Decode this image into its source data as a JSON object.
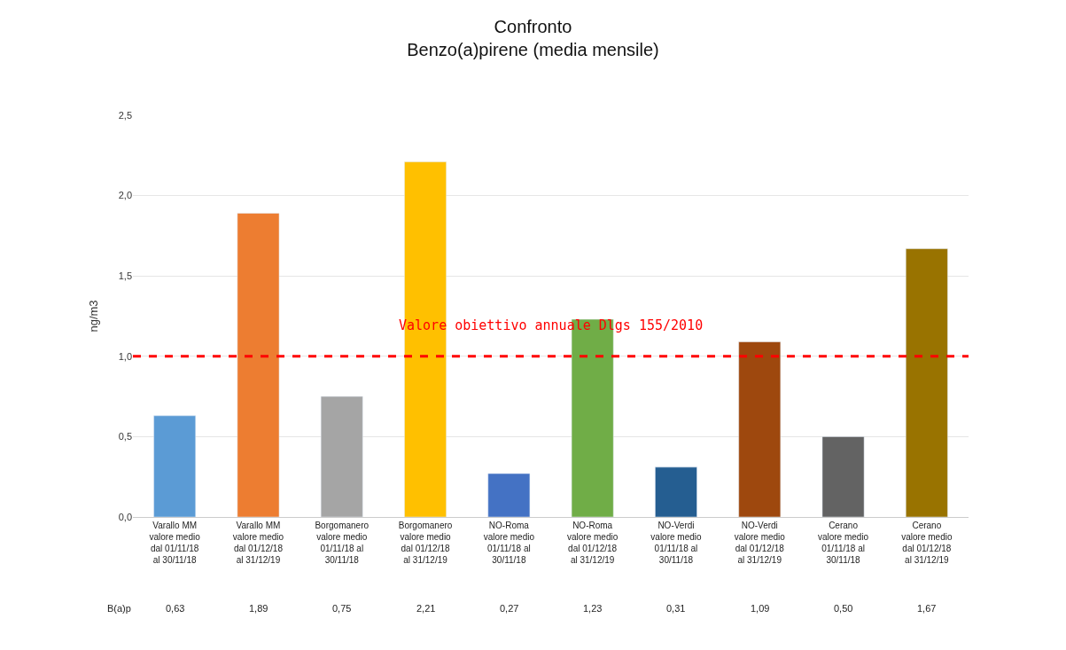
{
  "chart_data": {
    "type": "bar",
    "title": "Confronto\nBenzo(a)pirene (media mensile)",
    "ylabel": "ng/m3",
    "categories": [
      "Varallo MM\nvalore medio\ndal 01/11/18\nal 30/11/18",
      "Varallo MM\nvalore medio\ndal 01/12/18\nal 31/12/19",
      "Borgomanero\nvalore medio\n01/11/18 al\n30/11/18",
      "Borgomanero\nvalore medio\ndal 01/12/18\nal 31/12/19",
      "NO-Roma\nvalore medio\n01/11/18 al\n30/11/18",
      "NO-Roma\nvalore medio\ndal 01/12/18\nal 31/12/19",
      "NO-Verdi\nvalore medio\n01/11/18 al\n30/11/18",
      "NO-Verdi\nvalore medio\ndal 01/12/18\nal 31/12/19",
      "Cerano\nvalore medio\n01/11/18 al\n30/11/18",
      "Cerano\nvalore medio\ndal 01/12/18\nal 31/12/19"
    ],
    "annotations": [
      "B(a)p"
    ],
    "series": [
      {
        "values": [
          0.63,
          1.89,
          0.75,
          2.21,
          0.27,
          1.23,
          0.31,
          1.09,
          0.5,
          1.67
        ],
        "colors": [
          "#5b9bd5",
          "#ed7d31",
          "#a5a5a5",
          "#ffc000",
          "#4472c4",
          "#70ad47",
          "#255e91",
          "#9e480e",
          "#636363",
          "#997300"
        ],
        "value_labels": [
          "0,63",
          "1,89",
          "0,75",
          "2,21",
          "0,27",
          "1,23",
          "0,31",
          "1,09",
          "0,50",
          "1,67"
        ]
      }
    ],
    "ylim": [
      0,
      2.5
    ],
    "yticks": [
      {
        "value": 0,
        "label": "0,0"
      },
      {
        "value": 0.5,
        "label": "0,5"
      },
      {
        "value": 1,
        "label": "1,0"
      },
      {
        "value": 1.5,
        "label": "1,5"
      },
      {
        "value": 2,
        "label": "2,0"
      },
      {
        "value": 2.5,
        "label": "2,5"
      }
    ],
    "grid": "y",
    "legend": false,
    "ref_lines": [
      {
        "axis": "y",
        "value": 1.0,
        "label": "Valore obiettivo annuale Dlgs 155/2010",
        "color": "#ff0000",
        "line_style": "dashed"
      }
    ]
  }
}
